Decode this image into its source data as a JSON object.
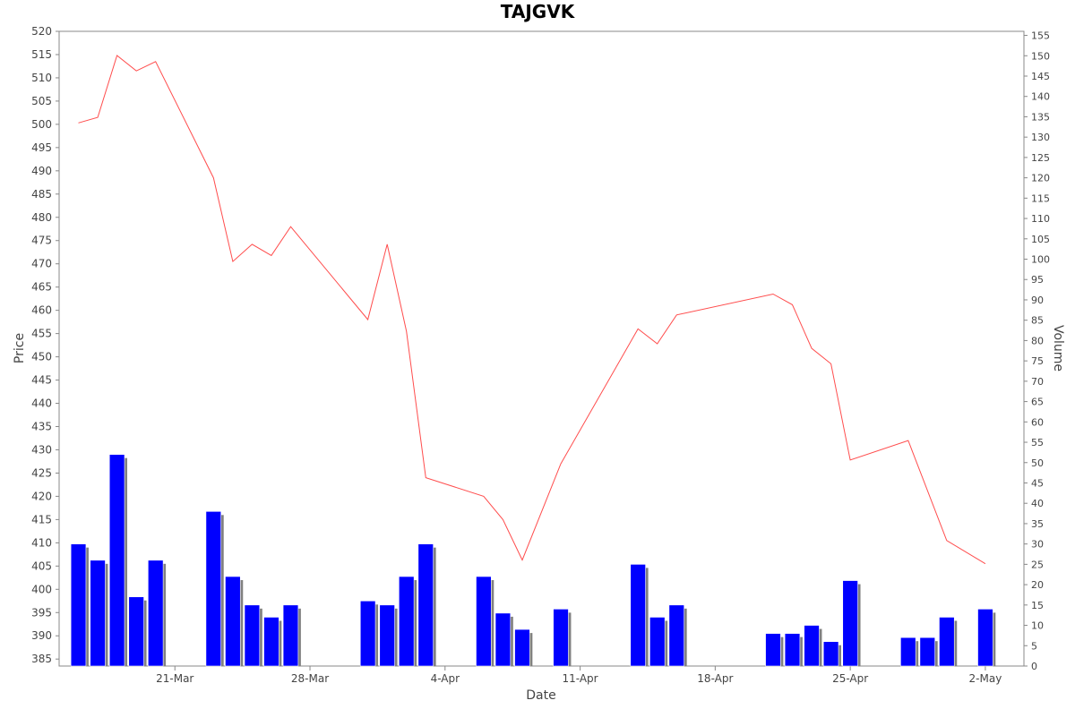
{
  "chart_data": {
    "type": "line+bar",
    "title": "TAJGVK",
    "xlabel": "Date",
    "ylabel_left": "Price",
    "ylabel_right": "Volume",
    "price_axis": {
      "min": 383.5,
      "max": 520,
      "ticks": [
        385,
        390,
        395,
        400,
        405,
        410,
        415,
        420,
        425,
        430,
        435,
        440,
        445,
        450,
        455,
        460,
        465,
        470,
        475,
        480,
        485,
        490,
        495,
        500,
        505,
        510,
        515,
        520
      ]
    },
    "volume_axis": {
      "min": 0,
      "max": 156,
      "ticks": [
        0,
        5,
        10,
        15,
        20,
        25,
        30,
        35,
        40,
        45,
        50,
        55,
        60,
        65,
        70,
        75,
        80,
        85,
        90,
        95,
        100,
        105,
        110,
        115,
        120,
        125,
        130,
        135,
        140,
        145,
        150,
        155
      ]
    },
    "date_axis": {
      "start": "2011-03-15",
      "end": "2011-05-04"
    },
    "x_ticks": [
      {
        "date": "2011-03-21",
        "label": "21-Mar"
      },
      {
        "date": "2011-03-28",
        "label": "28-Mar"
      },
      {
        "date": "2011-04-04",
        "label": "4-Apr"
      },
      {
        "date": "2011-04-11",
        "label": "11-Apr"
      },
      {
        "date": "2011-04-18",
        "label": "18-Apr"
      },
      {
        "date": "2011-04-25",
        "label": "25-Apr"
      },
      {
        "date": "2011-05-02",
        "label": "2-May"
      }
    ],
    "series": [
      {
        "name": "Price",
        "kind": "line",
        "color": "#ff4d4d",
        "points": [
          [
            "2011-03-16",
            500.3
          ],
          [
            "2011-03-17",
            501.5
          ],
          [
            "2011-03-18",
            514.8
          ],
          [
            "2011-03-19",
            511.5
          ],
          [
            "2011-03-20",
            513.5
          ],
          [
            "2011-03-23",
            488.5
          ],
          [
            "2011-03-24",
            470.5
          ],
          [
            "2011-03-25",
            474.2
          ],
          [
            "2011-03-26",
            471.8
          ],
          [
            "2011-03-27",
            478.0
          ],
          [
            "2011-03-31",
            458.0
          ],
          [
            "2011-04-01",
            474.2
          ],
          [
            "2011-04-02",
            455.5
          ],
          [
            "2011-04-03",
            424.0
          ],
          [
            "2011-04-06",
            420.0
          ],
          [
            "2011-04-07",
            415.0
          ],
          [
            "2011-04-08",
            406.3
          ],
          [
            "2011-04-10",
            427.0
          ],
          [
            "2011-04-14",
            456.0
          ],
          [
            "2011-04-15",
            452.8
          ],
          [
            "2011-04-16",
            459.0
          ],
          [
            "2011-04-21",
            463.5
          ],
          [
            "2011-04-22",
            461.2
          ],
          [
            "2011-04-23",
            451.8
          ],
          [
            "2011-04-24",
            448.5
          ],
          [
            "2011-04-25",
            427.8
          ],
          [
            "2011-04-28",
            432.0
          ],
          [
            "2011-04-30",
            410.5
          ],
          [
            "2011-05-02",
            405.5
          ]
        ]
      },
      {
        "name": "Volume",
        "kind": "bar",
        "color": "#0000ff",
        "shadow_color": "#808080",
        "points": [
          [
            "2011-03-16",
            30
          ],
          [
            "2011-03-17",
            26
          ],
          [
            "2011-03-18",
            52
          ],
          [
            "2011-03-19",
            17
          ],
          [
            "2011-03-20",
            26
          ],
          [
            "2011-03-23",
            38
          ],
          [
            "2011-03-24",
            22
          ],
          [
            "2011-03-25",
            15
          ],
          [
            "2011-03-26",
            12
          ],
          [
            "2011-03-27",
            15
          ],
          [
            "2011-03-31",
            16
          ],
          [
            "2011-04-01",
            15
          ],
          [
            "2011-04-02",
            22
          ],
          [
            "2011-04-03",
            30
          ],
          [
            "2011-04-06",
            22
          ],
          [
            "2011-04-07",
            13
          ],
          [
            "2011-04-08",
            9
          ],
          [
            "2011-04-10",
            14
          ],
          [
            "2011-04-14",
            25
          ],
          [
            "2011-04-15",
            12
          ],
          [
            "2011-04-16",
            15
          ],
          [
            "2011-04-21",
            8
          ],
          [
            "2011-04-22",
            8
          ],
          [
            "2011-04-23",
            10
          ],
          [
            "2011-04-24",
            6
          ],
          [
            "2011-04-25",
            21
          ],
          [
            "2011-04-28",
            7
          ],
          [
            "2011-04-29",
            7
          ],
          [
            "2011-04-30",
            12
          ],
          [
            "2011-05-02",
            14
          ]
        ]
      }
    ],
    "grid": false
  }
}
